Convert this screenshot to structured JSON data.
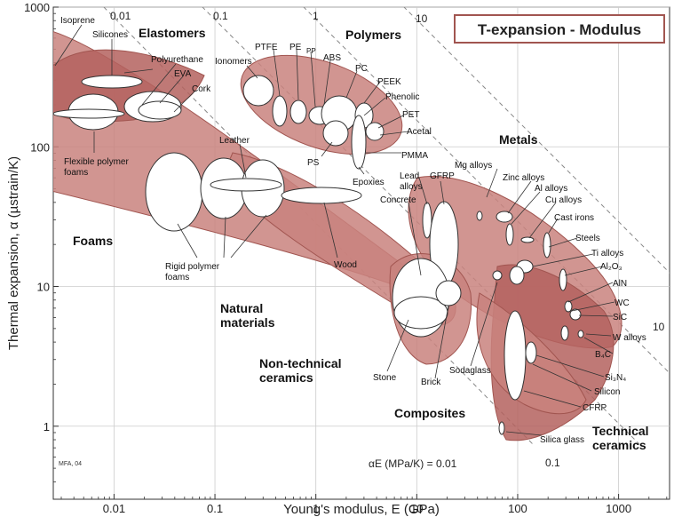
{
  "chart_data": {
    "type": "scatter",
    "title": "T-expansion - Modulus",
    "xlabel": "Young's modulus, E (GPa)",
    "ylabel": "Thermal expansion, α  (µstrain/K)",
    "xscale": "log",
    "yscale": "log",
    "xlim": [
      0.0025,
      3200
    ],
    "ylim": [
      0.3,
      1000
    ],
    "x_ticks": [
      "0.01",
      "0.1",
      "1",
      "10",
      "100",
      "1000"
    ],
    "y_ticks": [
      "1000",
      "100",
      "10",
      "1"
    ],
    "grid": true,
    "credit": "MFA, 04",
    "guide_caption": "αE (MPa/K) = 0.01",
    "guide_values": [
      "0.01",
      "0.1",
      "1",
      "10",
      "10",
      "0.1"
    ],
    "families": [
      {
        "name": "Elastomers",
        "label": "Elastomers"
      },
      {
        "name": "Polymers",
        "label": "Polymers"
      },
      {
        "name": "Metals",
        "label": "Metals"
      },
      {
        "name": "Foams",
        "label": "Foams"
      },
      {
        "name": "Natural materials",
        "label": "Natural\nmaterials"
      },
      {
        "name": "Non-technical ceramics",
        "label": "Non-technical\nceramics"
      },
      {
        "name": "Composites",
        "label": "Composites"
      },
      {
        "name": "Technical ceramics",
        "label": "Technical\nceramics"
      }
    ],
    "materials": [
      {
        "name": "Isoprene",
        "E": 0.0015,
        "alpha": 500
      },
      {
        "name": "Silicones",
        "E": 0.01,
        "alpha": 310
      },
      {
        "name": "Polyurethane",
        "E": 0.03,
        "alpha": 180
      },
      {
        "name": "EVA",
        "E": 0.035,
        "alpha": 165
      },
      {
        "name": "Cork",
        "E": 0.03,
        "alpha": 150
      },
      {
        "name": "Flexible polymer foams",
        "E": 0.008,
        "alpha": 150
      },
      {
        "name": "Ionomers",
        "E": 0.2,
        "alpha": 270
      },
      {
        "name": "PTFE",
        "E": 0.45,
        "alpha": 150
      },
      {
        "name": "PE",
        "E": 0.7,
        "alpha": 150
      },
      {
        "name": "PP",
        "E": 1.0,
        "alpha": 155
      },
      {
        "name": "ABS",
        "E": 1.5,
        "alpha": 150
      },
      {
        "name": "PC",
        "E": 2.3,
        "alpha": 150
      },
      {
        "name": "PEEK",
        "E": 3.7,
        "alpha": 150
      },
      {
        "name": "Phenolic",
        "E": 3.2,
        "alpha": 140
      },
      {
        "name": "PET",
        "E": 3.0,
        "alpha": 130
      },
      {
        "name": "Acetal",
        "E": 3.0,
        "alpha": 110
      },
      {
        "name": "PS",
        "E": 2.4,
        "alpha": 100
      },
      {
        "name": "PMMA",
        "E": 3.0,
        "alpha": 90
      },
      {
        "name": "Epoxies",
        "E": 2.5,
        "alpha": 85
      },
      {
        "name": "Leather",
        "E": 0.2,
        "alpha": 50
      },
      {
        "name": "Rigid polymer foams",
        "E": 0.09,
        "alpha": 45
      },
      {
        "name": "Wood",
        "E": 2.5,
        "alpha": 40
      },
      {
        "name": "Lead alloys",
        "E": 14,
        "alpha": 28
      },
      {
        "name": "GFRP",
        "E": 25,
        "alpha": 25
      },
      {
        "name": "Concrete",
        "E": 30,
        "alpha": 12
      },
      {
        "name": "Mg alloys",
        "E": 45,
        "alpha": 26
      },
      {
        "name": "Zinc alloys",
        "E": 90,
        "alpha": 25
      },
      {
        "name": "Al alloys",
        "E": 72,
        "alpha": 23
      },
      {
        "name": "Cu alloys",
        "E": 120,
        "alpha": 18
      },
      {
        "name": "Cast irons",
        "E": 130,
        "alpha": 11
      },
      {
        "name": "Steels",
        "E": 200,
        "alpha": 12
      },
      {
        "name": "Ti alloys",
        "E": 110,
        "alpha": 9
      },
      {
        "name": "Al2O3",
        "E": 380,
        "alpha": 8
      },
      {
        "name": "AlN",
        "E": 320,
        "alpha": 4.7
      },
      {
        "name": "WC",
        "E": 600,
        "alpha": 5.5
      },
      {
        "name": "SiC",
        "E": 420,
        "alpha": 4.5
      },
      {
        "name": "W alloys",
        "E": 400,
        "alpha": 4.5
      },
      {
        "name": "B4C",
        "E": 450,
        "alpha": 5.5
      },
      {
        "name": "Si3N4",
        "E": 300,
        "alpha": 3.2
      },
      {
        "name": "Silicon",
        "E": 150,
        "alpha": 2.6
      },
      {
        "name": "CFRP",
        "E": 110,
        "alpha": 2
      },
      {
        "name": "Silica glass",
        "E": 70,
        "alpha": 0.55
      },
      {
        "name": "Sodaglass",
        "E": 70,
        "alpha": 9
      },
      {
        "name": "Brick",
        "E": 22,
        "alpha": 7
      },
      {
        "name": "Stone",
        "E": 15,
        "alpha": 6
      }
    ],
    "labels": {
      "isoprene": "Isoprene",
      "silicones": "Silicones",
      "polyurethane": "Polyurethane",
      "eva": "EVA",
      "cork": "Cork",
      "flex_foams": "Flexible polymer\nfoams",
      "ionomers": "Ionomers",
      "ptfe": "PTFE",
      "pe": "PE",
      "pp": "PP",
      "abs": "ABS",
      "pc": "PC",
      "peek": "PEEK",
      "phenolic": "Phenolic",
      "pet": "PET",
      "acetal": "Acetal",
      "ps": "PS",
      "pmma": "PMMA",
      "epoxies": "Epoxies",
      "leather": "Leather",
      "rigid_foams": "Rigid polymer\nfoams",
      "wood": "Wood",
      "lead": "Lead\nalloys",
      "gfrp": "GFRP",
      "concrete": "Concrete",
      "mg": "Mg alloys",
      "zinc": "Zinc alloys",
      "al": "Al alloys",
      "cu": "Cu alloys",
      "castirons": "Cast irons",
      "steels": "Steels",
      "ti": "Ti alloys",
      "al2o3": "Al₂O₃",
      "aln": "AlN",
      "wc": "WC",
      "sic": "SiC",
      "walloys": "W alloys",
      "b4c": "B₄C",
      "si3n4": "Si₃N₄",
      "silicon": "Silicon",
      "cfrp": "CFRP",
      "silicaglass": "Silica glass",
      "sodaglass": "Sodaglass",
      "brick": "Brick",
      "stone": "Stone"
    },
    "colors": {
      "family_fill": "#c9827e",
      "family_stroke": "#a15550",
      "family_dark": "#b4625e",
      "material_fill": "#ffffff",
      "guide": "#888888",
      "grid": "#cccccc"
    }
  }
}
